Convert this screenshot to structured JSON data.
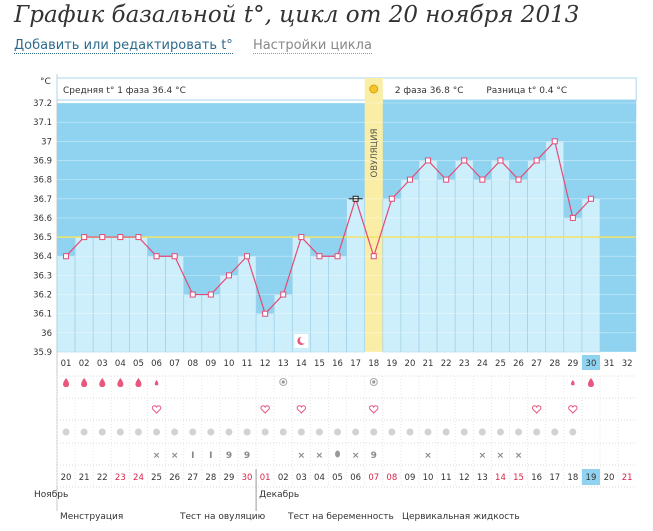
{
  "title": "График базальной t°, цикл от 20 ноября 2013",
  "links": {
    "edit": "Добавить или редактировать t°",
    "settings": "Настройки цикла"
  },
  "chart_data": {
    "type": "line",
    "y_unit": "°C",
    "ylim": [
      35.9,
      37.2
    ],
    "y_ticks": [
      "37.2",
      "37.1",
      "37",
      "36.9",
      "36.8",
      "36.7",
      "36.6",
      "36.5",
      "36.4",
      "36.3",
      "36.2",
      "36.1",
      "36",
      "35.9"
    ],
    "phase1_label": "Средняя t° 1 фаза 36.4 °C",
    "phase2_label": "2 фаза 36.8 °C",
    "diff_label": "Разница t° 0.4 °C",
    "ovulation_label": "ОВУЛЯЦИЯ",
    "coverline": 36.5,
    "cycle_days": [
      "01",
      "02",
      "03",
      "04",
      "05",
      "06",
      "07",
      "08",
      "09",
      "10",
      "11",
      "12",
      "13",
      "14",
      "15",
      "16",
      "17",
      "18",
      "19",
      "20",
      "21",
      "22",
      "23",
      "24",
      "25",
      "26",
      "27",
      "28",
      "29",
      "30",
      "31",
      "32"
    ],
    "phase2_days": [
      "01",
      "02",
      "03",
      "04",
      "05",
      "06",
      "07",
      "08",
      "09",
      "10",
      "11",
      "12",
      "13",
      "14"
    ],
    "values": [
      36.4,
      36.5,
      36.5,
      36.5,
      36.5,
      36.4,
      36.4,
      36.2,
      36.2,
      36.3,
      36.4,
      36.1,
      36.2,
      36.5,
      36.4,
      36.4,
      36.7,
      36.4,
      36.7,
      36.8,
      36.9,
      36.8,
      36.9,
      36.8,
      36.9,
      36.8,
      36.9,
      37.0,
      36.6,
      36.7,
      null,
      null
    ],
    "current_day": "30",
    "dates": [
      "20",
      "21",
      "22",
      "23",
      "24",
      "25",
      "26",
      "27",
      "28",
      "29",
      "30",
      "01",
      "02",
      "03",
      "04",
      "05",
      "06",
      "07",
      "08",
      "09",
      "10",
      "11",
      "12",
      "13",
      "14",
      "15",
      "16",
      "17",
      "18",
      "19",
      "20",
      "21"
    ],
    "weekend_dates_index": [
      3,
      4,
      10,
      11,
      17,
      18,
      24,
      25,
      31
    ],
    "current_date_index": 29,
    "months": {
      "nov": "Ноябрь",
      "dec": "Декабрь"
    },
    "row_menstruation": [
      2,
      2,
      2,
      2,
      2,
      1,
      0,
      0,
      0,
      0,
      0,
      0,
      0,
      0,
      0,
      0,
      0,
      0,
      0,
      0,
      0,
      0,
      0,
      0,
      0,
      0,
      0,
      0,
      1,
      2,
      0,
      0
    ],
    "row_ovtest": [
      12,
      17
    ],
    "row_heart": [
      5,
      11,
      13,
      17,
      26,
      28
    ],
    "row_moon_day": 13,
    "legend": {
      "menstr": "Менструация",
      "ovtest": "Тест на овуляцию",
      "preg": "Тест на беременность",
      "cerv": "Цервикальная жидкость"
    }
  },
  "colors": {
    "blue_bg": "#8fd3f0",
    "bar": "#cdeefb",
    "bar_border": "#9ed0e6",
    "line": "#e34b76",
    "ovulation": "#faeea6",
    "coverline": "#f2e36a",
    "current": "#8fd3f0",
    "weekend": "#d9234a",
    "pink": "#e8587e"
  }
}
